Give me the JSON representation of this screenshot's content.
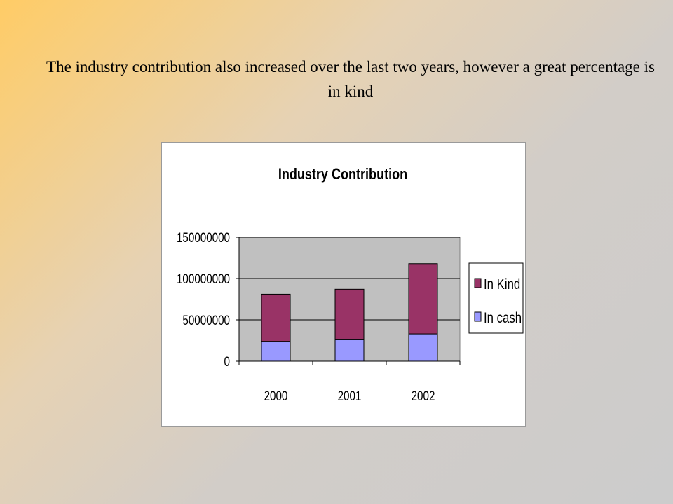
{
  "slide": {
    "text": "The industry contribution also increased over the last two years, however a great percentage is in kind"
  },
  "chart_data": {
    "type": "bar",
    "stacked": true,
    "title": "Industry Contribution",
    "xlabel": "",
    "ylabel": "",
    "categories": [
      "2000",
      "2001",
      "2002"
    ],
    "series": [
      {
        "name": "In cash",
        "values": [
          24000000,
          26000000,
          33000000
        ],
        "color": "#9999ff"
      },
      {
        "name": "In Kind",
        "values": [
          57000000,
          61000000,
          85000000
        ],
        "color": "#993366"
      }
    ],
    "ylim": [
      0,
      150000000
    ],
    "yticks": [
      {
        "value": 0,
        "label": "0"
      },
      {
        "value": 50000000,
        "label": "50000000"
      },
      {
        "value": 100000000,
        "label": "100000000"
      },
      {
        "value": 150000000,
        "label": "150000000"
      }
    ],
    "grid": true,
    "plot_background": "#c0c0c0",
    "legend_position": "right",
    "legend_order": [
      "In Kind",
      "In cash"
    ]
  }
}
